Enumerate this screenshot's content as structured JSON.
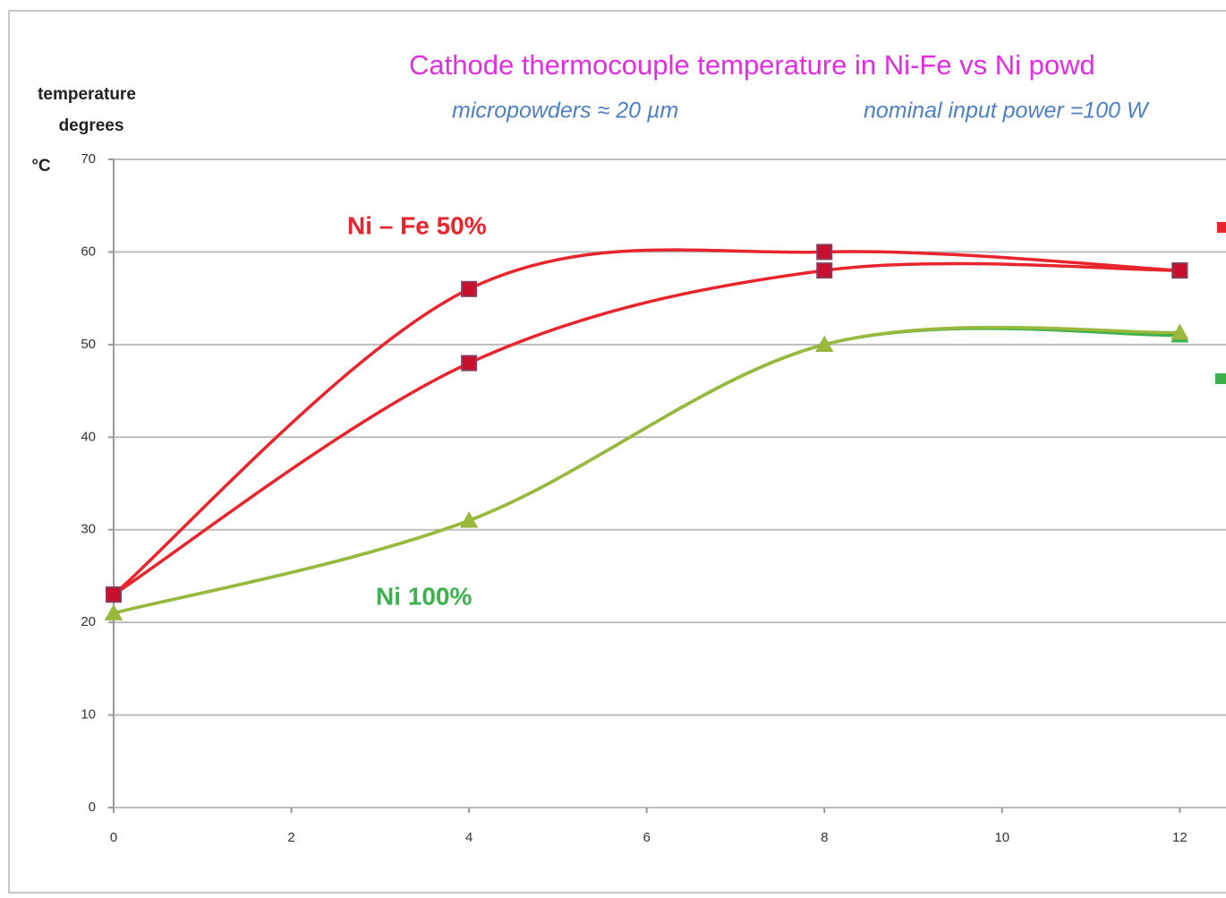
{
  "chart_data": {
    "type": "line",
    "title": "Cathode thermocouple temperature in Ni-Fe  vs  Ni powd",
    "subtitles": [
      "micropowders ≈ 20 µm",
      "nominal input power =100 W"
    ],
    "ylabel": [
      "temperature",
      "degrees",
      "°C"
    ],
    "annotations": [
      "Ni – Fe 50%",
      "Ni 100%"
    ],
    "xlim": [
      0,
      12.5
    ],
    "ylim": [
      0,
      70
    ],
    "xticks": [
      0,
      2,
      4,
      6,
      8,
      10,
      12
    ],
    "yticks": [
      0,
      10,
      20,
      30,
      40,
      50,
      60,
      70
    ],
    "grid": true,
    "smooth": true,
    "series": [
      {
        "color": "#e8242c",
        "marker": "square",
        "x": [
          0,
          4,
          8,
          12
        ],
        "values": [
          23,
          56,
          60,
          58
        ]
      },
      {
        "color": "#e8242c",
        "marker": "square",
        "x": [
          0,
          4,
          8,
          12
        ],
        "values": [
          23,
          48,
          58,
          58
        ]
      },
      {
        "color": "#3db14c",
        "marker": "triangle",
        "x": [
          0,
          4,
          8,
          12
        ],
        "values": [
          21,
          31,
          50,
          51
        ]
      },
      {
        "color": "#9ab83c",
        "marker": "triangle",
        "x": [
          0,
          4,
          8,
          12
        ],
        "values": [
          21,
          31,
          50,
          51.3
        ]
      }
    ]
  }
}
